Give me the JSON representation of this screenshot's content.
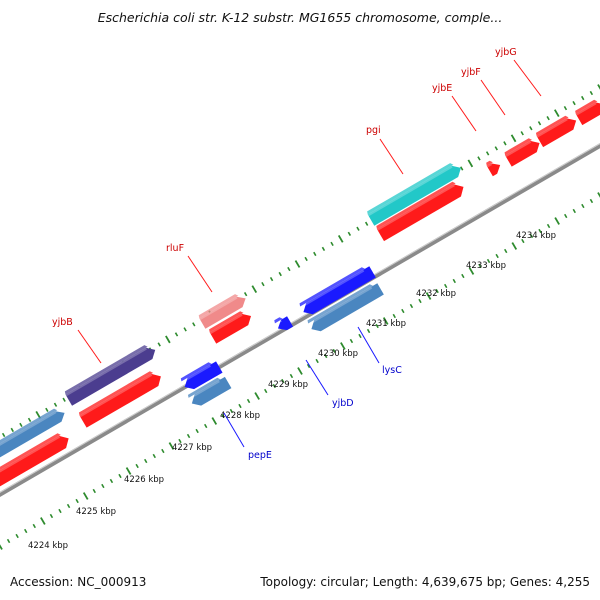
{
  "title": "Escherichia coli str. K-12 substr. MG1655 chromosome, comple...",
  "footer": {
    "accession": "Accession: NC_000913",
    "summary": "Topology: circular; Length: 4,639,675 bp; Genes: 4,255"
  },
  "colors": {
    "backbone": "#8a8a8a",
    "tick": "#2e8b2e",
    "forward_cds": "#ff1a1a",
    "forward_cds_light": "#f08a8a",
    "forward_highlight": "#22c8c8",
    "forward_dark": "#4b3d8f",
    "reverse_cds": "#1a1aff",
    "reverse_light": "#4a86c0",
    "forward_label": "#cc0000",
    "reverse_label": "#0000cc"
  },
  "scale_labels": [
    "4224 kbp",
    "4225 kbp",
    "4226 kbp",
    "4227 kbp",
    "4228 kbp",
    "4229 kbp",
    "4230 kbp",
    "4231 kbp",
    "4232 kbp",
    "4233 kbp",
    "4234 kbp"
  ],
  "genes": [
    {
      "name": "yjbB",
      "strand": "forward",
      "color_key": "forward_dark"
    },
    {
      "name": "rluF",
      "strand": "forward",
      "color_key": "forward_cds_light"
    },
    {
      "name": "pgi",
      "strand": "forward",
      "color_key": "forward_highlight"
    },
    {
      "name": "yjbE",
      "strand": "forward",
      "color_key": "forward_cds"
    },
    {
      "name": "yjbF",
      "strand": "forward",
      "color_key": "forward_cds"
    },
    {
      "name": "yjbG",
      "strand": "forward",
      "color_key": "forward_cds"
    },
    {
      "name": "pepE",
      "strand": "reverse",
      "color_key": "reverse_light"
    },
    {
      "name": "yjbD",
      "strand": "reverse",
      "color_key": "reverse_cds"
    },
    {
      "name": "lysC",
      "strand": "reverse",
      "color_key": "reverse_light"
    }
  ]
}
